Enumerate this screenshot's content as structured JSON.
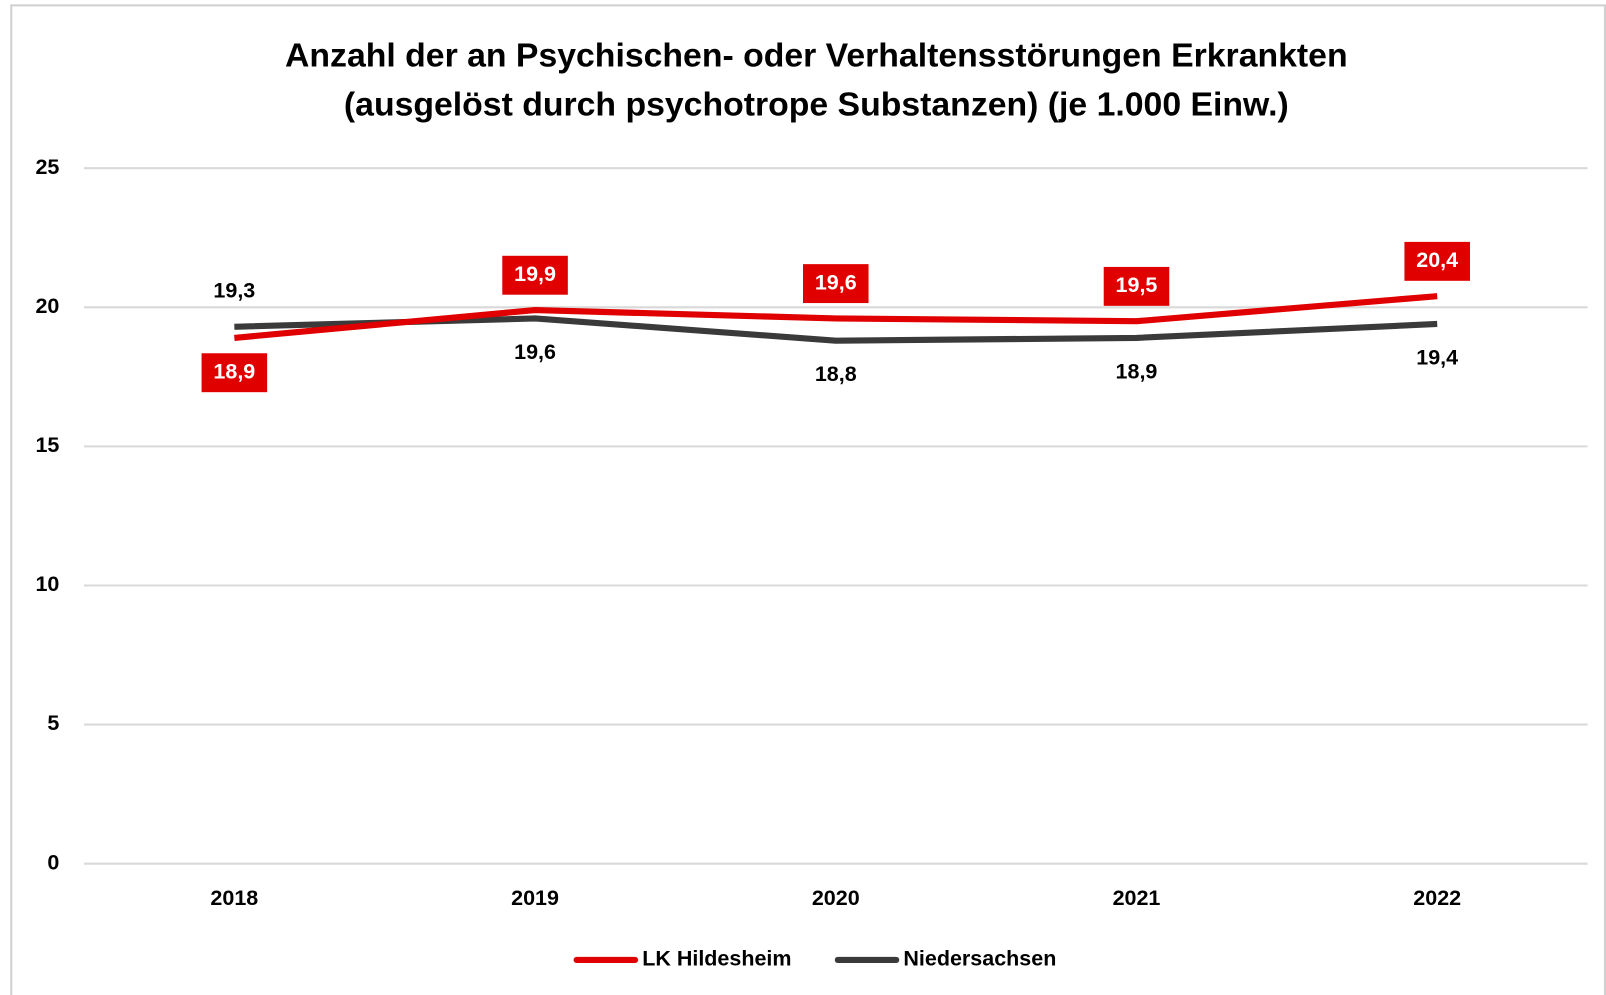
{
  "chart_data": {
    "type": "line",
    "title": [
      "Anzahl der an Psychischen- oder Verhaltensstörungen Erkrankten",
      "(ausgelöst durch psychotrope Substanzen) (je 1.000 Einw.)"
    ],
    "categories": [
      "2018",
      "2019",
      "2020",
      "2021",
      "2022"
    ],
    "series": [
      {
        "name": "LK Hildesheim",
        "color": "#e00000",
        "values": [
          18.9,
          19.9,
          19.6,
          19.5,
          20.4
        ],
        "value_labels": [
          "18,9",
          "19,9",
          "19,6",
          "19,5",
          "20,4"
        ]
      },
      {
        "name": "Niedersachsen",
        "color": "#3a3a3a",
        "values": [
          19.3,
          19.6,
          18.8,
          18.9,
          19.4
        ],
        "value_labels": [
          "19,3",
          "19,6",
          "18,8",
          "18,9",
          "19,4"
        ]
      }
    ],
    "ylim": [
      0,
      25
    ],
    "yticks": [
      0,
      5,
      10,
      15,
      20,
      25
    ],
    "grid": true,
    "legend": "bottom"
  }
}
